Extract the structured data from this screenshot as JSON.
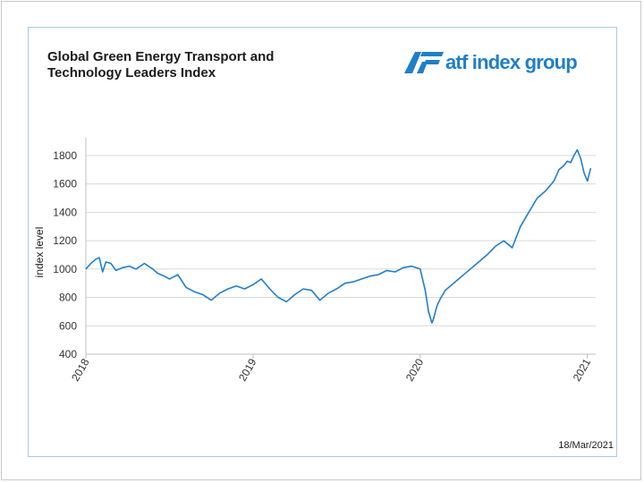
{
  "header": {
    "title_line1": "Global Green Energy Transport and",
    "title_line2": "Technology Leaders Index",
    "logo_text": "atf index group",
    "logo_color": "#1f7fc9"
  },
  "footer": {
    "date": "18/Mar/2021"
  },
  "chart_data": {
    "type": "line",
    "title": "Global Green Energy Transport and Technology Leaders Index",
    "xlabel": "",
    "ylabel": "index level",
    "ylim": [
      400,
      1900
    ],
    "yticks": [
      400,
      600,
      800,
      1000,
      1200,
      1400,
      1600,
      1800
    ],
    "xlim": [
      2018.0,
      2021.05
    ],
    "xticks": [
      "2018",
      "2019",
      "2020",
      "2021"
    ],
    "grid": "horizontal",
    "line_color": "#1f7fc9",
    "series": [
      {
        "x": [
          2018.0,
          2018.03,
          2018.06,
          2018.08,
          2018.1,
          2018.12,
          2018.15,
          2018.18,
          2018.22,
          2018.26,
          2018.3,
          2018.35,
          2018.4,
          2018.43,
          2018.47,
          2018.5,
          2018.55,
          2018.6,
          2018.65,
          2018.7,
          2018.75,
          2018.8,
          2018.85,
          2018.9,
          2018.95,
          2019.0,
          2019.05,
          2019.1,
          2019.15,
          2019.2,
          2019.25,
          2019.3,
          2019.35,
          2019.4,
          2019.45,
          2019.5,
          2019.55,
          2019.6,
          2019.65,
          2019.7,
          2019.75,
          2019.8,
          2019.85,
          2019.9,
          2019.95,
          2020.0,
          2020.03,
          2020.05,
          2020.07,
          2020.08,
          2020.1,
          2020.12,
          2020.15,
          2020.2,
          2020.25,
          2020.3,
          2020.35,
          2020.4,
          2020.45,
          2020.5,
          2020.55,
          2020.6,
          2020.65,
          2020.7,
          2020.75,
          2020.8,
          2020.83,
          2020.86,
          2020.88,
          2020.9,
          2020.92,
          2020.94,
          2020.96,
          2020.98,
          2021.0,
          2021.02
        ],
        "y": [
          1000,
          1040,
          1070,
          1080,
          980,
          1050,
          1040,
          990,
          1010,
          1020,
          1000,
          1040,
          1000,
          970,
          950,
          930,
          960,
          870,
          840,
          820,
          780,
          830,
          860,
          880,
          860,
          890,
          930,
          860,
          800,
          770,
          820,
          860,
          850,
          780,
          830,
          860,
          900,
          910,
          930,
          950,
          960,
          990,
          980,
          1010,
          1020,
          1000,
          850,
          700,
          620,
          650,
          740,
          790,
          850,
          900,
          950,
          1000,
          1050,
          1100,
          1160,
          1200,
          1150,
          1300,
          1400,
          1500,
          1550,
          1620,
          1700,
          1730,
          1760,
          1750,
          1800,
          1840,
          1780,
          1680,
          1620,
          1710
        ]
      }
    ]
  }
}
